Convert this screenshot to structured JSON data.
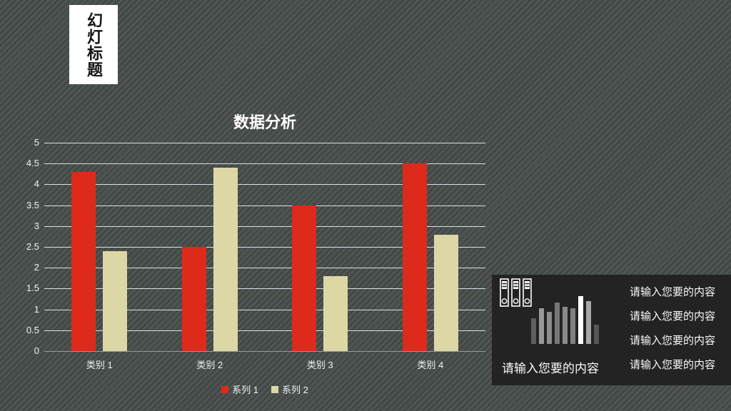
{
  "slide": {
    "title_box": {
      "title": "幻灯标题"
    }
  },
  "chart_data": {
    "type": "bar",
    "title": "数据分析",
    "categories": [
      "类别 1",
      "类别 2",
      "类别 3",
      "类别 4"
    ],
    "series": [
      {
        "name": "系列 1",
        "color": "#de2a1a",
        "values": [
          4.3,
          2.5,
          3.5,
          4.5
        ]
      },
      {
        "name": "系列 2",
        "color": "#ddd7a6",
        "values": [
          2.4,
          4.4,
          1.8,
          2.8
        ]
      }
    ],
    "ylim": [
      0,
      5
    ],
    "ytick_step": 0.5,
    "grid": true,
    "legend_position": "bottom",
    "gridline_color": "#d7e1e8",
    "baseline_color": "#959b9b"
  },
  "panel": {
    "lines": [
      "请输入您要的内容",
      "请输入您要的内容",
      "请输入您要的内容",
      "请输入您要的内容"
    ],
    "caption": "请输入您要的内容",
    "icons": {
      "binders": "binders-icon",
      "bar_graph": "bar-graph-icon"
    },
    "bar_graph_icon": {
      "heights": [
        36,
        50,
        45,
        58,
        52,
        50,
        67,
        60,
        27
      ],
      "colors": [
        "#5e5e5e",
        "#999999",
        "#8d8d8d",
        "#777777",
        "#8a8a8a",
        "#808080",
        "#ffffff",
        "#a8a8a8",
        "#565656"
      ]
    },
    "background": "#232323"
  }
}
